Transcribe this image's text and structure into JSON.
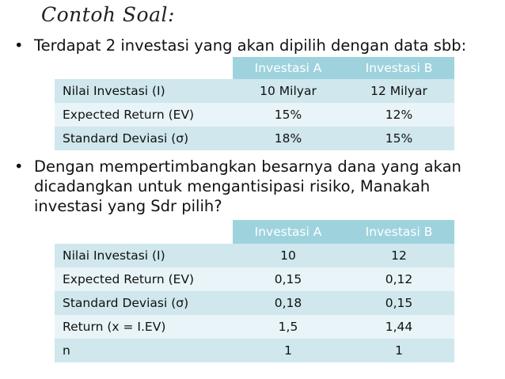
{
  "title": "Contoh Soal:",
  "bullet1": "Terdapat 2 investasi yang akan dipilih dengan data sbb:",
  "bullet2": {
    "line1": "Dengan mempertimbangkan besarnya dana yang akan",
    "line2": "dicadangkan untuk mengantisipasi risiko, Manakah",
    "line3": "investasi yang Sdr pilih?"
  },
  "bullet_symbol": "•",
  "table1": {
    "headers": [
      "",
      "Investasi A",
      "Investasi B"
    ],
    "rows": [
      [
        "Nilai Investasi (I)",
        "10 Milyar",
        "12 Milyar"
      ],
      [
        "Expected Return (EV)",
        "15%",
        "12%"
      ],
      [
        "Standard Deviasi (σ)",
        "18%",
        "15%"
      ]
    ]
  },
  "table2": {
    "headers": [
      "",
      "Investasi A",
      "Investasi B"
    ],
    "rows": [
      [
        "Nilai Investasi (I)",
        "10",
        "12"
      ],
      [
        "Expected Return (EV)",
        "0,15",
        "0,12"
      ],
      [
        "Standard Deviasi (σ)",
        "0,18",
        "0,15"
      ],
      [
        "Return (x = I.EV)",
        "1,5",
        "1,44"
      ],
      [
        "n",
        "1",
        "1"
      ]
    ]
  }
}
